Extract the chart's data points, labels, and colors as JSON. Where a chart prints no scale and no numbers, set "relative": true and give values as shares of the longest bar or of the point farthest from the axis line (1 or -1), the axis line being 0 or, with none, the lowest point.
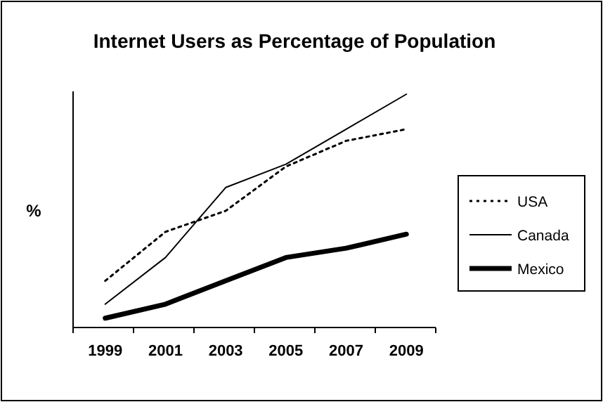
{
  "chart_data": {
    "type": "line",
    "title": "Internet Users as Percentage of Population",
    "ylabel": "%",
    "relative": true,
    "categories": [
      "1999",
      "2001",
      "2003",
      "2005",
      "2007",
      "2009"
    ],
    "series": [
      {
        "name": "USA",
        "color": "#000000",
        "line_style": "dotted",
        "values": [
          0.2,
          0.41,
          0.5,
          0.69,
          0.8,
          0.85
        ]
      },
      {
        "name": "Canada",
        "color": "#000000",
        "line_style": "solid",
        "values": [
          0.1,
          0.3,
          0.6,
          0.7,
          0.85,
          1
        ]
      },
      {
        "name": "Mexico",
        "color": "#000000",
        "line_style": "solid",
        "values": [
          0.04,
          0.1,
          0.2,
          0.3,
          0.34,
          0.4
        ]
      }
    ],
    "legend": "right"
  }
}
